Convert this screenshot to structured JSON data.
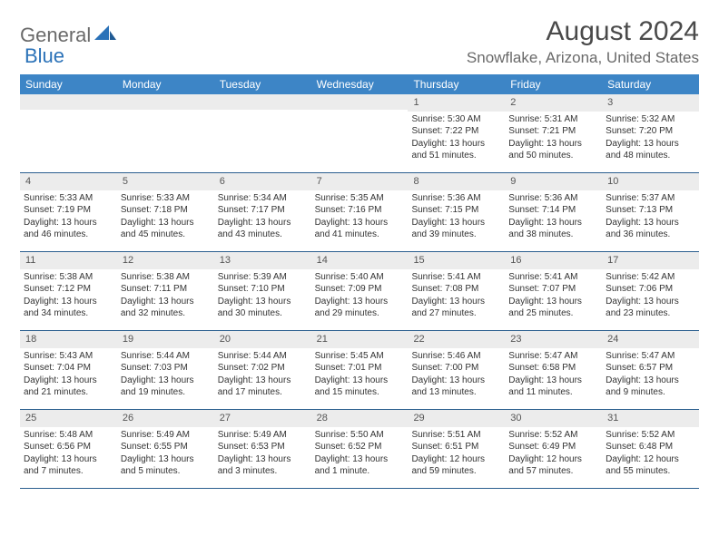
{
  "logo": {
    "word1": "General",
    "word2": "Blue"
  },
  "title": "August 2024",
  "location": "Snowflake, Arizona, United States",
  "colors": {
    "header_bg": "#3d85c6",
    "header_text": "#ffffff",
    "daynum_bg": "#ececec",
    "week_border": "#2b5f8f",
    "body_text": "#333333",
    "logo_gray": "#6a6a6a",
    "logo_blue": "#2b72b8"
  },
  "daysOfWeek": [
    "Sunday",
    "Monday",
    "Tuesday",
    "Wednesday",
    "Thursday",
    "Friday",
    "Saturday"
  ],
  "weeks": [
    [
      {
        "n": "",
        "sunrise": "",
        "sunset": "",
        "daylight": ""
      },
      {
        "n": "",
        "sunrise": "",
        "sunset": "",
        "daylight": ""
      },
      {
        "n": "",
        "sunrise": "",
        "sunset": "",
        "daylight": ""
      },
      {
        "n": "",
        "sunrise": "",
        "sunset": "",
        "daylight": ""
      },
      {
        "n": "1",
        "sunrise": "Sunrise: 5:30 AM",
        "sunset": "Sunset: 7:22 PM",
        "daylight": "Daylight: 13 hours and 51 minutes."
      },
      {
        "n": "2",
        "sunrise": "Sunrise: 5:31 AM",
        "sunset": "Sunset: 7:21 PM",
        "daylight": "Daylight: 13 hours and 50 minutes."
      },
      {
        "n": "3",
        "sunrise": "Sunrise: 5:32 AM",
        "sunset": "Sunset: 7:20 PM",
        "daylight": "Daylight: 13 hours and 48 minutes."
      }
    ],
    [
      {
        "n": "4",
        "sunrise": "Sunrise: 5:33 AM",
        "sunset": "Sunset: 7:19 PM",
        "daylight": "Daylight: 13 hours and 46 minutes."
      },
      {
        "n": "5",
        "sunrise": "Sunrise: 5:33 AM",
        "sunset": "Sunset: 7:18 PM",
        "daylight": "Daylight: 13 hours and 45 minutes."
      },
      {
        "n": "6",
        "sunrise": "Sunrise: 5:34 AM",
        "sunset": "Sunset: 7:17 PM",
        "daylight": "Daylight: 13 hours and 43 minutes."
      },
      {
        "n": "7",
        "sunrise": "Sunrise: 5:35 AM",
        "sunset": "Sunset: 7:16 PM",
        "daylight": "Daylight: 13 hours and 41 minutes."
      },
      {
        "n": "8",
        "sunrise": "Sunrise: 5:36 AM",
        "sunset": "Sunset: 7:15 PM",
        "daylight": "Daylight: 13 hours and 39 minutes."
      },
      {
        "n": "9",
        "sunrise": "Sunrise: 5:36 AM",
        "sunset": "Sunset: 7:14 PM",
        "daylight": "Daylight: 13 hours and 38 minutes."
      },
      {
        "n": "10",
        "sunrise": "Sunrise: 5:37 AM",
        "sunset": "Sunset: 7:13 PM",
        "daylight": "Daylight: 13 hours and 36 minutes."
      }
    ],
    [
      {
        "n": "11",
        "sunrise": "Sunrise: 5:38 AM",
        "sunset": "Sunset: 7:12 PM",
        "daylight": "Daylight: 13 hours and 34 minutes."
      },
      {
        "n": "12",
        "sunrise": "Sunrise: 5:38 AM",
        "sunset": "Sunset: 7:11 PM",
        "daylight": "Daylight: 13 hours and 32 minutes."
      },
      {
        "n": "13",
        "sunrise": "Sunrise: 5:39 AM",
        "sunset": "Sunset: 7:10 PM",
        "daylight": "Daylight: 13 hours and 30 minutes."
      },
      {
        "n": "14",
        "sunrise": "Sunrise: 5:40 AM",
        "sunset": "Sunset: 7:09 PM",
        "daylight": "Daylight: 13 hours and 29 minutes."
      },
      {
        "n": "15",
        "sunrise": "Sunrise: 5:41 AM",
        "sunset": "Sunset: 7:08 PM",
        "daylight": "Daylight: 13 hours and 27 minutes."
      },
      {
        "n": "16",
        "sunrise": "Sunrise: 5:41 AM",
        "sunset": "Sunset: 7:07 PM",
        "daylight": "Daylight: 13 hours and 25 minutes."
      },
      {
        "n": "17",
        "sunrise": "Sunrise: 5:42 AM",
        "sunset": "Sunset: 7:06 PM",
        "daylight": "Daylight: 13 hours and 23 minutes."
      }
    ],
    [
      {
        "n": "18",
        "sunrise": "Sunrise: 5:43 AM",
        "sunset": "Sunset: 7:04 PM",
        "daylight": "Daylight: 13 hours and 21 minutes."
      },
      {
        "n": "19",
        "sunrise": "Sunrise: 5:44 AM",
        "sunset": "Sunset: 7:03 PM",
        "daylight": "Daylight: 13 hours and 19 minutes."
      },
      {
        "n": "20",
        "sunrise": "Sunrise: 5:44 AM",
        "sunset": "Sunset: 7:02 PM",
        "daylight": "Daylight: 13 hours and 17 minutes."
      },
      {
        "n": "21",
        "sunrise": "Sunrise: 5:45 AM",
        "sunset": "Sunset: 7:01 PM",
        "daylight": "Daylight: 13 hours and 15 minutes."
      },
      {
        "n": "22",
        "sunrise": "Sunrise: 5:46 AM",
        "sunset": "Sunset: 7:00 PM",
        "daylight": "Daylight: 13 hours and 13 minutes."
      },
      {
        "n": "23",
        "sunrise": "Sunrise: 5:47 AM",
        "sunset": "Sunset: 6:58 PM",
        "daylight": "Daylight: 13 hours and 11 minutes."
      },
      {
        "n": "24",
        "sunrise": "Sunrise: 5:47 AM",
        "sunset": "Sunset: 6:57 PM",
        "daylight": "Daylight: 13 hours and 9 minutes."
      }
    ],
    [
      {
        "n": "25",
        "sunrise": "Sunrise: 5:48 AM",
        "sunset": "Sunset: 6:56 PM",
        "daylight": "Daylight: 13 hours and 7 minutes."
      },
      {
        "n": "26",
        "sunrise": "Sunrise: 5:49 AM",
        "sunset": "Sunset: 6:55 PM",
        "daylight": "Daylight: 13 hours and 5 minutes."
      },
      {
        "n": "27",
        "sunrise": "Sunrise: 5:49 AM",
        "sunset": "Sunset: 6:53 PM",
        "daylight": "Daylight: 13 hours and 3 minutes."
      },
      {
        "n": "28",
        "sunrise": "Sunrise: 5:50 AM",
        "sunset": "Sunset: 6:52 PM",
        "daylight": "Daylight: 13 hours and 1 minute."
      },
      {
        "n": "29",
        "sunrise": "Sunrise: 5:51 AM",
        "sunset": "Sunset: 6:51 PM",
        "daylight": "Daylight: 12 hours and 59 minutes."
      },
      {
        "n": "30",
        "sunrise": "Sunrise: 5:52 AM",
        "sunset": "Sunset: 6:49 PM",
        "daylight": "Daylight: 12 hours and 57 minutes."
      },
      {
        "n": "31",
        "sunrise": "Sunrise: 5:52 AM",
        "sunset": "Sunset: 6:48 PM",
        "daylight": "Daylight: 12 hours and 55 minutes."
      }
    ]
  ]
}
